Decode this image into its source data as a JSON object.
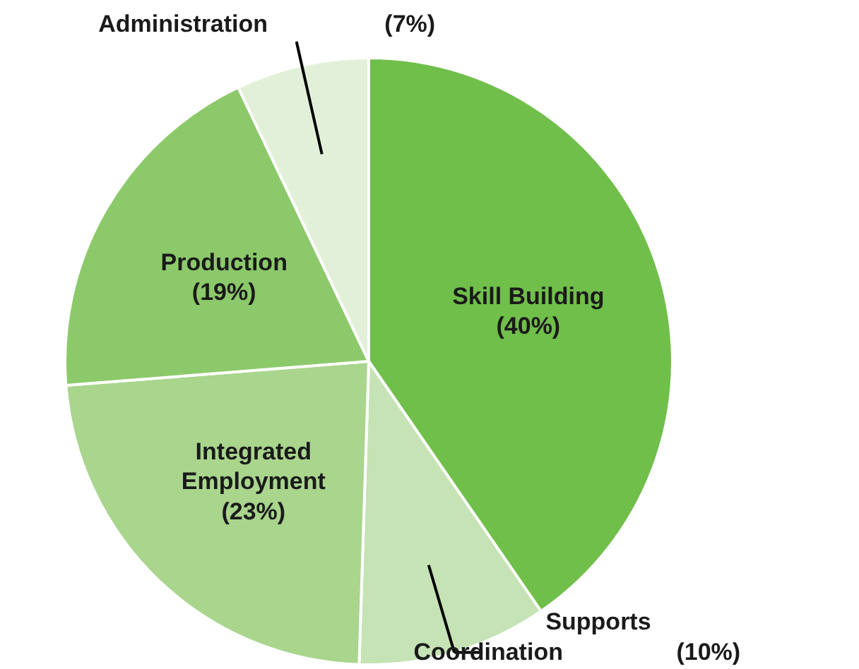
{
  "chart_data": {
    "type": "pie",
    "categories": [
      "Skill Building",
      "Supports Coordination",
      "Integrated Employment",
      "Production",
      "Administration"
    ],
    "values": [
      40,
      10,
      23,
      19,
      7
    ],
    "colors": [
      "#70bf4a",
      "#c5e3b4",
      "#a9d58d",
      "#8cc96a",
      "#e2f0d9"
    ],
    "value_labels": [
      "(40%)",
      "(10%)",
      "(23%)",
      "(19%)",
      "(7%)"
    ]
  }
}
